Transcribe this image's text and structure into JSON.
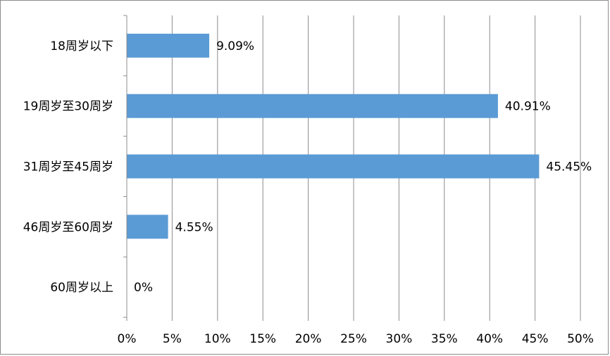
{
  "chart_data": {
    "type": "bar",
    "orientation": "horizontal",
    "categories": [
      "18周岁以下",
      "19周岁至30周岁",
      "31周岁至45周岁",
      "46周岁至60周岁",
      "60周岁以上"
    ],
    "values": [
      9.09,
      40.91,
      45.45,
      4.55,
      0
    ],
    "data_labels": [
      "9.09%",
      "40.91%",
      "45.45%",
      "4.55%",
      "0%"
    ],
    "x_ticks": [
      "0%",
      "5%",
      "10%",
      "15%",
      "20%",
      "25%",
      "30%",
      "35%",
      "40%",
      "45%",
      "50%"
    ],
    "xlim": [
      0,
      50
    ],
    "grid": "vertical",
    "legend": "none",
    "title": "",
    "xlabel": "",
    "ylabel": "",
    "colors": {
      "bar": "#5b9bd5",
      "grid": "#8c8c8c",
      "axis": "#8c8c8c",
      "text": "#000000"
    }
  }
}
